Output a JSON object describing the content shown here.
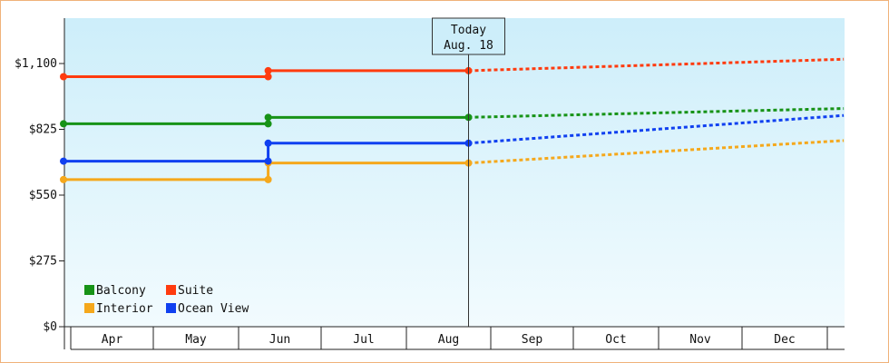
{
  "chart_data": {
    "type": "line",
    "y_tick_labels": [
      "$0",
      "$275",
      "$550",
      "$825",
      "$1,100"
    ],
    "y_ticks": [
      0,
      275,
      550,
      825,
      1100
    ],
    "ylim": [
      0,
      1100
    ],
    "months": [
      "Apr",
      "May",
      "Jun",
      "Jul",
      "Aug",
      "Sep",
      "Oct",
      "Nov",
      "Dec"
    ],
    "today": {
      "line1": "Today",
      "line2": "Aug. 18",
      "month_pos": 4.75
    },
    "legend": {
      "placement": "bottom-left"
    },
    "series": [
      {
        "name": "Balcony",
        "color": "#179317",
        "actual": [
          [
            0.0,
            848
          ],
          [
            2.4,
            848
          ],
          [
            2.4,
            875
          ],
          [
            4.75,
            875
          ]
        ],
        "projected": [
          [
            4.75,
            875
          ],
          [
            9.15,
            912
          ]
        ]
      },
      {
        "name": "Suite",
        "color": "#ff3b0f",
        "actual": [
          [
            0.0,
            1045
          ],
          [
            2.4,
            1045
          ],
          [
            2.4,
            1070
          ],
          [
            4.75,
            1070
          ]
        ],
        "projected": [
          [
            4.75,
            1070
          ],
          [
            9.15,
            1118
          ]
        ]
      },
      {
        "name": "Interior",
        "color": "#f5a81c",
        "actual": [
          [
            0.0,
            615
          ],
          [
            2.4,
            615
          ],
          [
            2.4,
            684
          ],
          [
            4.75,
            684
          ]
        ],
        "projected": [
          [
            4.75,
            684
          ],
          [
            9.15,
            778
          ]
        ]
      },
      {
        "name": "Ocean View",
        "color": "#1040f0",
        "actual": [
          [
            0.0,
            692
          ],
          [
            2.4,
            692
          ],
          [
            2.4,
            767
          ],
          [
            4.75,
            767
          ]
        ],
        "projected": [
          [
            4.75,
            767
          ],
          [
            9.15,
            883
          ]
        ]
      }
    ]
  }
}
